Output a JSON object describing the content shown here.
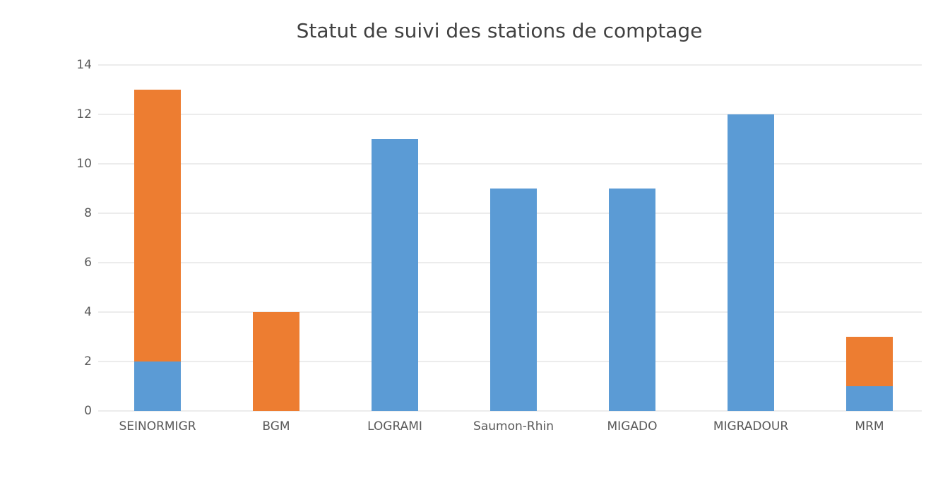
{
  "chart_data": {
    "type": "stacked_bar",
    "title": "Statut de suivi des stations de comptage",
    "categories": [
      "SEINORMIGR",
      "BGM",
      "LOGRAMI",
      "Saumon-Rhin",
      "MIGADO",
      "MIGRADOUR",
      "MRM"
    ],
    "series": [
      {
        "color": "#5b9bd5",
        "values": [
          2,
          0,
          11,
          9,
          9,
          12,
          1
        ]
      },
      {
        "color": "#ed7d31",
        "values": [
          11,
          4,
          0,
          0,
          0,
          0,
          2
        ]
      }
    ],
    "ylim": [
      0,
      14
    ],
    "yticks": [
      0,
      2,
      4,
      6,
      8,
      10,
      12,
      14
    ],
    "grid": true
  }
}
